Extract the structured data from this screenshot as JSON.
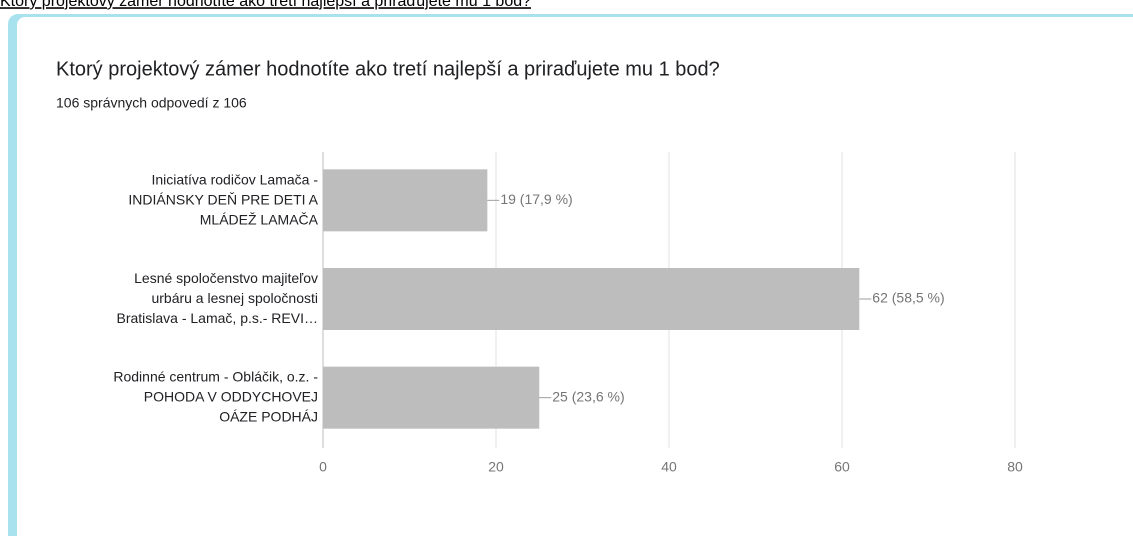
{
  "top_caption": "Ktorý projektový zámer hodnotíte ako tretí najlepší a priraďujete mu 1 bod?",
  "chart_data": {
    "type": "bar",
    "orientation": "horizontal",
    "title": "Ktorý projektový zámer hodnotíte ako tretí najlepší a priraďujete mu 1 bod?",
    "subtitle": "106 správnych odpovedí z 106",
    "categories": [
      [
        "Iniciatíva rodičov Lamača -",
        "INDIÁNSKY DEŇ PRE DETI A",
        "MLÁDEŽ LAMAČA"
      ],
      [
        "Lesné spoločenstvo majiteľov",
        "urbáru a lesnej spoločnosti",
        "Bratislava - Lamač, p.s.- REVI…"
      ],
      [
        "Rodinné centrum - Obláčik, o.z. -",
        "POHODA V ODDYCHOVEJ",
        "OÁZE PODHÁJ"
      ]
    ],
    "values": [
      19,
      62,
      25
    ],
    "value_labels": [
      "19 (17,9 %)",
      "62 (58,5 %)",
      "25 (23,6 %)"
    ],
    "color": "#bdbdbd",
    "xlim": [
      0,
      80
    ],
    "xticks": [
      0,
      20,
      40,
      60,
      80
    ],
    "grid": true
  }
}
